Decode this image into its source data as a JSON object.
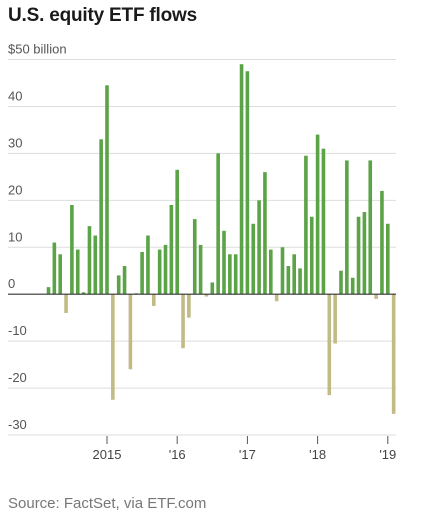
{
  "chart_data": {
    "type": "bar",
    "title": "U.S. equity ETF flows",
    "ylabel": "",
    "xlabel": "",
    "source": "Source: FactSet, via ETF.com",
    "ylim": [
      -30,
      50
    ],
    "y_ticks": [
      50,
      40,
      30,
      20,
      10,
      0,
      -10,
      -20,
      -30
    ],
    "y_tick_labels": [
      "$50 billion",
      "40",
      "30",
      "20",
      "10",
      "0",
      "-10",
      "-20",
      "-30"
    ],
    "x_tick_labels": [
      {
        "label": "2015",
        "index": 10
      },
      {
        "label": "'16",
        "index": 22
      },
      {
        "label": "'17",
        "index": 34
      },
      {
        "label": "'18",
        "index": 46
      },
      {
        "label": "'19",
        "index": 58
      }
    ],
    "grid": true,
    "colors": {
      "positive": "#5aa347",
      "negative": "#c2bb86",
      "grid": "#dddddd",
      "axis": "#333333"
    },
    "series": [
      {
        "values": [
          1.5,
          11,
          8.5,
          -4,
          19,
          9.5,
          0.4,
          14.5,
          12.5,
          33,
          44.5,
          -22.5,
          4,
          6,
          -16,
          0.2,
          9,
          12.5,
          -2.5,
          9.5,
          10.5,
          19,
          26.5,
          -11.5,
          -5,
          16,
          10.5,
          -0.5,
          2.5,
          30,
          13.5,
          8.5,
          8.5,
          49,
          47.5,
          15,
          20,
          26,
          9.5,
          -1.5,
          10,
          6,
          8.5,
          5.5,
          29.5,
          16.5,
          34,
          31,
          -21.5,
          -10.5,
          5,
          28.5,
          3.5,
          16.5,
          17.5,
          28.5,
          -1,
          22,
          15,
          -25.5
        ]
      }
    ]
  }
}
